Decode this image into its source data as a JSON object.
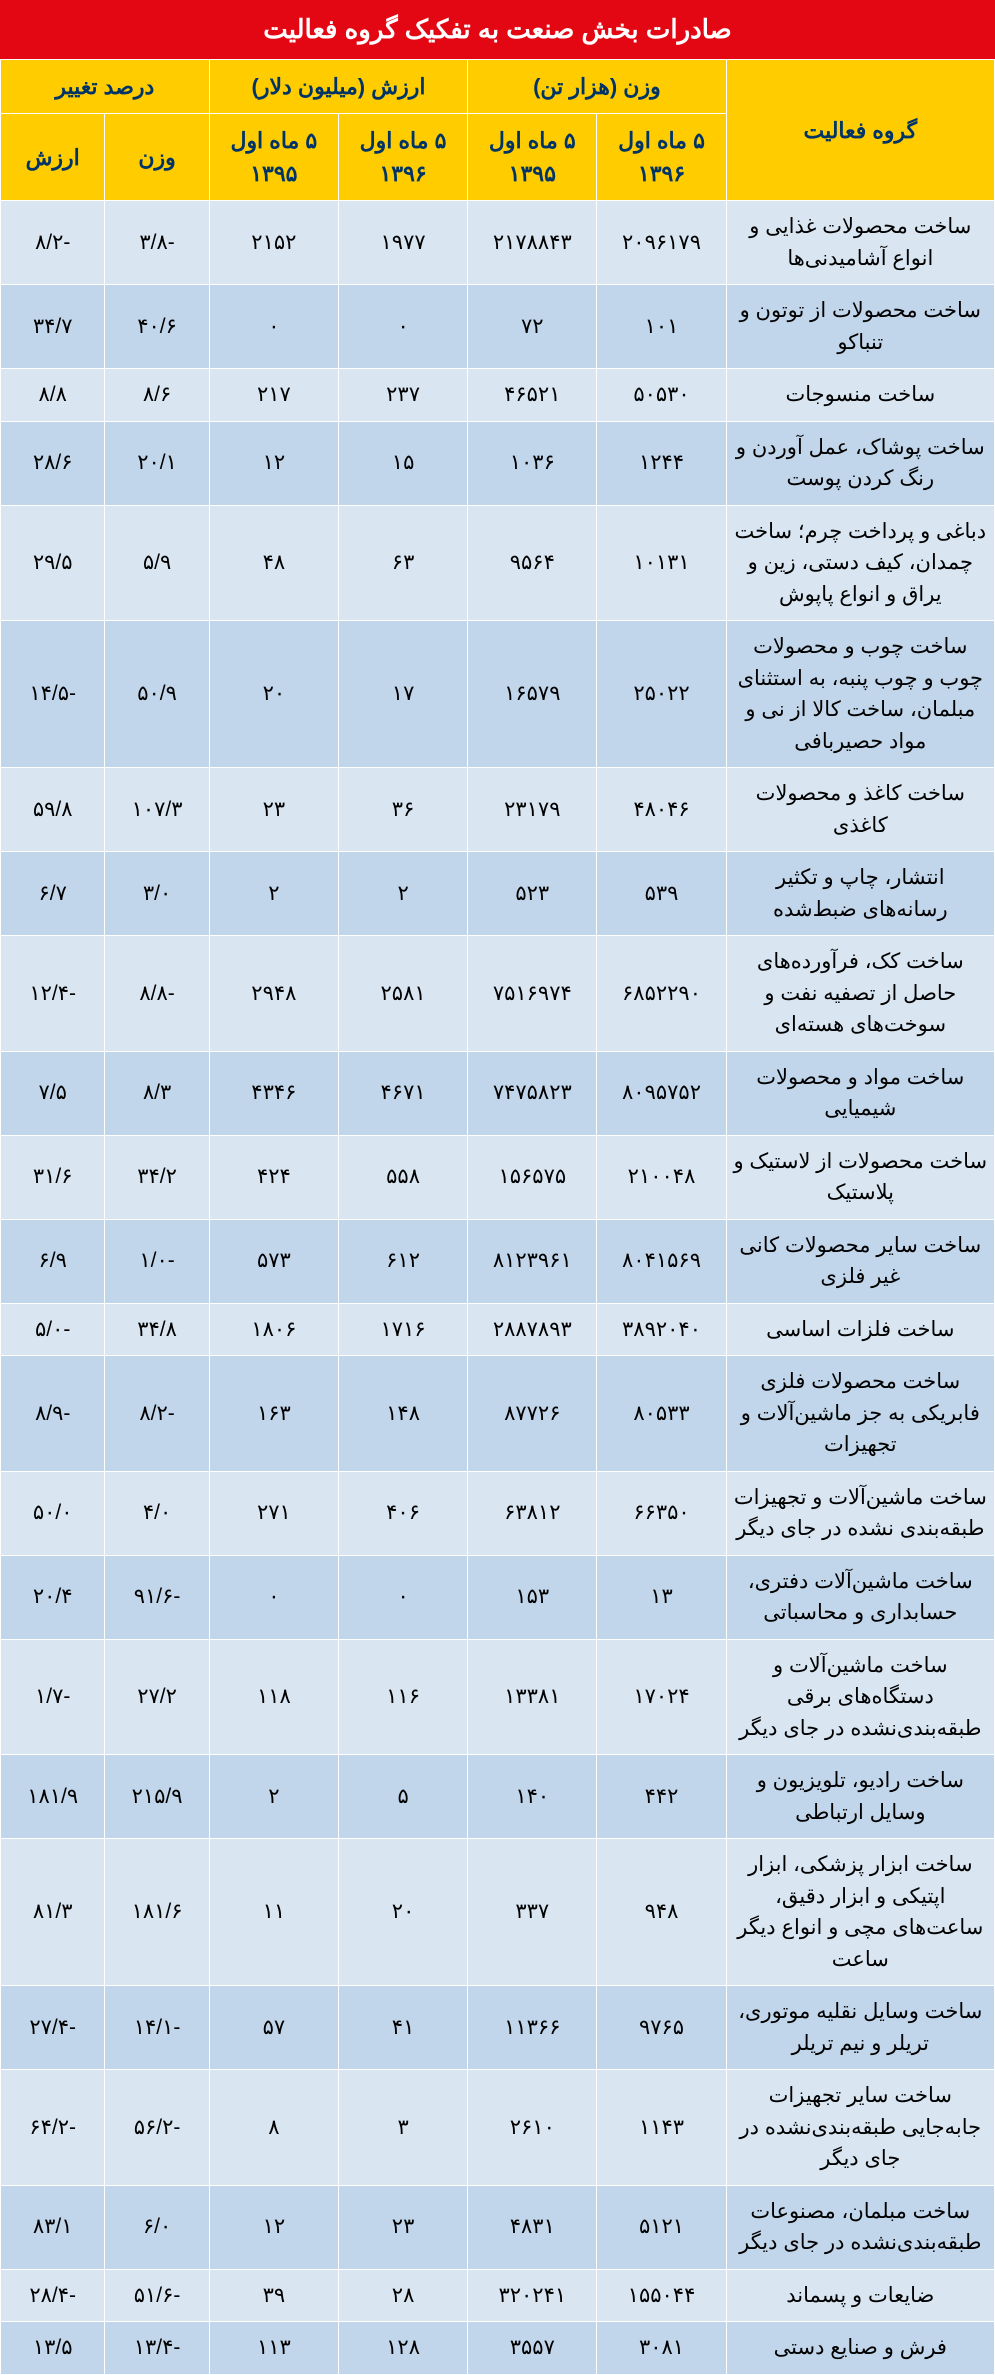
{
  "title": "صادرات بخش صنعت به تفکیک گروه فعالیت",
  "colors": {
    "title_bg": "#e30613",
    "title_fg": "#ffffff",
    "header_bg": "#ffcc00",
    "header_fg": "#003366",
    "row_odd": "#d9e6f2",
    "row_even": "#c2d6eb",
    "border": "#ffffff"
  },
  "header": {
    "group_activity": "گروه فعالیت",
    "weight": "وزن (هزار تن)",
    "value": "ارزش (میلیون دلار)",
    "change": "درصد تغییر",
    "p96": "۵ ماه اول ۱۳۹۶",
    "p95": "۵ ماه اول ۱۳۹۵",
    "weight_lbl": "وزن",
    "value_lbl": "ارزش"
  },
  "rows": [
    {
      "c": "ساخت محصولات غذایی و انواع آشامیدنی‌ها",
      "w96": "۲۰۹۶۱۷۹",
      "w95": "۲۱۷۸۸۴۳",
      "v96": "۱۹۷۷",
      "v95": "۲۱۵۲",
      "pw": "-۳/۸",
      "pv": "-۸/۲"
    },
    {
      "c": "ساخت محصولات از توتون و تنباکو",
      "w96": "۱۰۱",
      "w95": "۷۲",
      "v96": "۰",
      "v95": "۰",
      "pw": "۴۰/۶",
      "pv": "۳۴/۷"
    },
    {
      "c": "ساخت منسوجات",
      "w96": "۵۰۵۳۰",
      "w95": "۴۶۵۲۱",
      "v96": "۲۳۷",
      "v95": "۲۱۷",
      "pw": "۸/۶",
      "pv": "۸/۸"
    },
    {
      "c": "ساخت پوشاک، عمل آوردن و رنگ کردن پوست",
      "w96": "۱۲۴۴",
      "w95": "۱۰۳۶",
      "v96": "۱۵",
      "v95": "۱۲",
      "pw": "۲۰/۱",
      "pv": "۲۸/۶"
    },
    {
      "c": "دباغی و پرداخت چرم؛ ساخت چمدان، کیف دستی، زین و یراق و انواع پاپوش",
      "w96": "۱۰۱۳۱",
      "w95": "۹۵۶۴",
      "v96": "۶۳",
      "v95": "۴۸",
      "pw": "۵/۹",
      "pv": "۲۹/۵"
    },
    {
      "c": "ساخت چوب و محصولات چوب و چوب پنبه، به استثنای مبلمان، ساخت کالا از نی و مواد حصیربافی",
      "w96": "۲۵۰۲۲",
      "w95": "۱۶۵۷۹",
      "v96": "۱۷",
      "v95": "۲۰",
      "pw": "۵۰/۹",
      "pv": "-۱۴/۵"
    },
    {
      "c": "ساخت کاغذ و محصولات کاغذی",
      "w96": "۴۸۰۴۶",
      "w95": "۲۳۱۷۹",
      "v96": "۳۶",
      "v95": "۲۳",
      "pw": "۱۰۷/۳",
      "pv": "۵۹/۸"
    },
    {
      "c": "انتشار، چاپ و تکثیر رسانه‌های ضبط‌شده",
      "w96": "۵۳۹",
      "w95": "۵۲۳",
      "v96": "۲",
      "v95": "۲",
      "pw": "۳/۰",
      "pv": "۶/۷"
    },
    {
      "c": "ساخت کک، فرآورده‌های حاصل از تصفیه نفت و سوخت‌های هسته‌ای",
      "w96": "۶۸۵۲۲۹۰",
      "w95": "۷۵۱۶۹۷۴",
      "v96": "۲۵۸۱",
      "v95": "۲۹۴۸",
      "pw": "-۸/۸",
      "pv": "-۱۲/۴"
    },
    {
      "c": "ساخت مواد و محصولات شیمیایی",
      "w96": "۸۰۹۵۷۵۲",
      "w95": "۷۴۷۵۸۲۳",
      "v96": "۴۶۷۱",
      "v95": "۴۳۴۶",
      "pw": "۸/۳",
      "pv": "۷/۵"
    },
    {
      "c": "ساخت محصولات از لاستیک و پلاستیک",
      "w96": "۲۱۰۰۴۸",
      "w95": "۱۵۶۵۷۵",
      "v96": "۵۵۸",
      "v95": "۴۲۴",
      "pw": "۳۴/۲",
      "pv": "۳۱/۶"
    },
    {
      "c": "ساخت سایر محصولات کانی غیر فلزی",
      "w96": "۸۰۴۱۵۶۹",
      "w95": "۸۱۲۳۹۶۱",
      "v96": "۶۱۲",
      "v95": "۵۷۳",
      "pw": "-۱/۰",
      "pv": "۶/۹"
    },
    {
      "c": "ساخت فلزات اساسی",
      "w96": "۳۸۹۲۰۴۰",
      "w95": "۲۸۸۷۸۹۳",
      "v96": "۱۷۱۶",
      "v95": "۱۸۰۶",
      "pw": "۳۴/۸",
      "pv": "-۵/۰"
    },
    {
      "c": "ساخت محصولات فلزی فابریکی به جز ماشین‌آلات و تجهیزات",
      "w96": "۸۰۵۳۳",
      "w95": "۸۷۷۲۶",
      "v96": "۱۴۸",
      "v95": "۱۶۳",
      "pw": "-۸/۲",
      "pv": "-۸/۹"
    },
    {
      "c": "ساخت ماشین‌آلات و تجهیزات طبقه‌بندی نشده در جای دیگر",
      "w96": "۶۶۳۵۰",
      "w95": "۶۳۸۱۲",
      "v96": "۴۰۶",
      "v95": "۲۷۱",
      "pw": "۴/۰",
      "pv": "۵۰/۰"
    },
    {
      "c": "ساخت ماشین‌آلات دفتری، حسابداری و محاسباتی",
      "w96": "۱۳",
      "w95": "۱۵۳",
      "v96": "۰",
      "v95": "۰",
      "pw": "-۹۱/۶",
      "pv": "۲۰/۴"
    },
    {
      "c": "ساخت ماشین‌آلات و دستگاه‌های برقی طبقه‌بندی‌نشده در جای دیگر",
      "w96": "۱۷۰۲۴",
      "w95": "۱۳۳۸۱",
      "v96": "۱۱۶",
      "v95": "۱۱۸",
      "pw": "۲۷/۲",
      "pv": "-۱/۷"
    },
    {
      "c": "ساخت رادیو، تلویزیون و وسایل ارتباطی",
      "w96": "۴۴۲",
      "w95": "۱۴۰",
      "v96": "۵",
      "v95": "۲",
      "pw": "۲۱۵/۹",
      "pv": "۱۸۱/۹"
    },
    {
      "c": "ساخت ابزار پزشکی، ابزار اپتیکی و ابزار دقیق، ساعت‌های مچی و انواع دیگر ساعت",
      "w96": "۹۴۸",
      "w95": "۳۳۷",
      "v96": "۲۰",
      "v95": "۱۱",
      "pw": "۱۸۱/۶",
      "pv": "۸۱/۳"
    },
    {
      "c": "ساخت وسایل نقلیه موتوری، تریلر و نیم تریلر",
      "w96": "۹۷۶۵",
      "w95": "۱۱۳۶۶",
      "v96": "۴۱",
      "v95": "۵۷",
      "pw": "-۱۴/۱",
      "pv": "-۲۷/۴"
    },
    {
      "c": "ساخت سایر تجهیزات جابه‌جایی طبقه‌بندی‌نشده در جای دیگر",
      "w96": "۱۱۴۳",
      "w95": "۲۶۱۰",
      "v96": "۳",
      "v95": "۸",
      "pw": "-۵۶/۲",
      "pv": "-۶۴/۲"
    },
    {
      "c": "ساخت مبلمان، مصنوعات طبقه‌بندی‌نشده در جای دیگر",
      "w96": "۵۱۲۱",
      "w95": "۴۸۳۱",
      "v96": "۲۳",
      "v95": "۱۲",
      "pw": "۶/۰",
      "pv": "۸۳/۱"
    },
    {
      "c": "ضایعات و پسماند",
      "w96": "۱۵۵۰۴۴",
      "w95": "۳۲۰۲۴۱",
      "v96": "۲۸",
      "v95": "۳۹",
      "pw": "-۵۱/۶",
      "pv": "-۲۸/۴"
    },
    {
      "c": "فرش و صنایع دستی",
      "w96": "۳۰۸۱",
      "w95": "۳۵۵۷",
      "v96": "۱۲۸",
      "v95": "۱۱۳",
      "pw": "-۱۳/۴",
      "pv": "۱۳/۵"
    }
  ]
}
